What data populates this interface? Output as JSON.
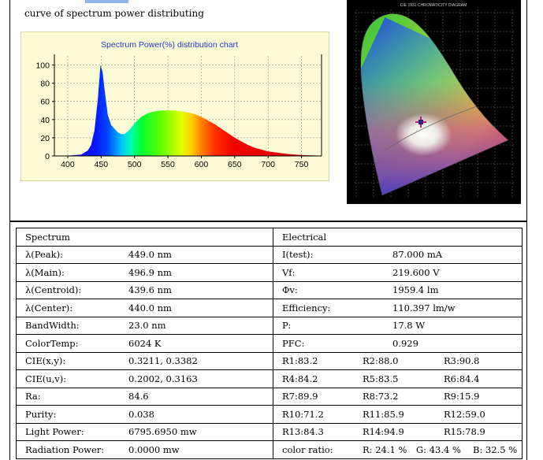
{
  "caption": "curve of spectrum power distributing",
  "cie_title": "CIE 1931 CHROMATICITY DIAGRAM",
  "chart_data": {
    "type": "area",
    "title": "Spectrum Power(%) distribution chart",
    "xlabel": "",
    "ylabel": "",
    "xlim": [
      380,
      780
    ],
    "ylim": [
      0,
      110
    ],
    "x_ticks": [
      400,
      450,
      500,
      550,
      600,
      650,
      700,
      750
    ],
    "y_ticks": [
      0,
      20,
      40,
      60,
      80,
      100
    ],
    "grid": true,
    "series": [
      {
        "x": [
          380,
          400,
          420,
          430,
          435,
          440,
          445,
          449,
          452,
          456,
          460,
          465,
          470,
          475,
          480,
          485,
          490,
          495,
          500,
          510,
          520,
          530,
          540,
          550,
          560,
          570,
          580,
          590,
          600,
          610,
          620,
          630,
          640,
          650,
          660,
          670,
          680,
          690,
          700,
          710,
          720,
          730,
          740,
          750,
          760,
          770,
          780
        ],
        "values": [
          0,
          0.3,
          1.5,
          6,
          12,
          28,
          62,
          100,
          93,
          68,
          45,
          34,
          30,
          26,
          24,
          24,
          27,
          31,
          36,
          43,
          47,
          49,
          50,
          50,
          50,
          49,
          48,
          46,
          43,
          39,
          35,
          30,
          25,
          20,
          16,
          12,
          9,
          7,
          5,
          4,
          3,
          2.2,
          1.5,
          1.1,
          0.8,
          0.5,
          0.3
        ]
      }
    ]
  },
  "table": {
    "left_header": "Spectrum",
    "right_header": "Electrical",
    "left_rows": [
      {
        "label": "λ(Peak):",
        "value": "449.0 nm"
      },
      {
        "label": "λ(Main):",
        "value": "496.9 nm"
      },
      {
        "label": "λ(Centroid):",
        "value": "439.6 nm"
      },
      {
        "label": "λ(Center):",
        "value": "440.0 nm"
      },
      {
        "label": "BandWidth:",
        "value": "23.0 nm"
      },
      {
        "label": "ColorTemp:",
        "value": "6024 K"
      },
      {
        "label": "CIE(x,y):",
        "value": "0.3211, 0.3382"
      },
      {
        "label": "CIE(u,v):",
        "value": "0.2002, 0.3163"
      },
      {
        "label": "Ra:",
        "value": "84.6"
      },
      {
        "label": "Purity:",
        "value": "0.038"
      },
      {
        "label": "Light Power:",
        "value": "6795.6950 mw"
      },
      {
        "label": "Radiation Power:",
        "value": "0.0000 mw"
      }
    ],
    "electrical_rows": [
      {
        "label": "I(test):",
        "value": "87.000 mA"
      },
      {
        "label": "Vf:",
        "value": "219.600 V"
      },
      {
        "label": "Φv:",
        "value": "1959.4 lm"
      },
      {
        "label": "Efficiency:",
        "value": "110.397 lm/w"
      },
      {
        "label": "P:",
        "value": "17.8 W"
      },
      {
        "label": "PFC:",
        "value": "0.929"
      }
    ],
    "r_rows": [
      [
        "R1:83.2",
        "R2:88.0",
        "R3:90.8"
      ],
      [
        "R4:84.2",
        "R5:83.5",
        "R6:84.4"
      ],
      [
        "R7:89.9",
        "R8:73.2",
        "R9:15.9"
      ],
      [
        "R10:71.2",
        "R11:85.9",
        "R12:59.0"
      ],
      [
        "R13:84.3",
        "R14:94.9",
        "R15:78.9"
      ]
    ],
    "color_ratio": {
      "label": "color ratio:",
      "r": "R: 24.1 %",
      "g": "G: 43.4 %",
      "b": "B: 32.5 %"
    }
  }
}
